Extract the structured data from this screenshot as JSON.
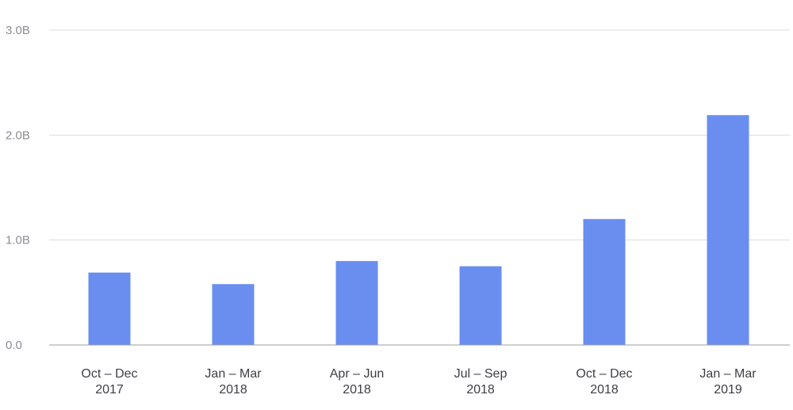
{
  "colors": {
    "bar": "#6a8ef0",
    "grid": "#dcdde0",
    "axis": "#9a9ca0"
  },
  "chart_data": {
    "type": "bar",
    "title": "",
    "xlabel": "",
    "ylabel": "",
    "grid": true,
    "ylim": [
      0,
      3
    ],
    "yticks": [
      {
        "value": 0,
        "label": "0.0"
      },
      {
        "value": 1,
        "label": "1.0B"
      },
      {
        "value": 2,
        "label": "2.0B"
      },
      {
        "value": 3,
        "label": "3.0B"
      }
    ],
    "categories": [
      {
        "line1": "Oct – Dec",
        "line2": "2017"
      },
      {
        "line1": "Jan – Mar",
        "line2": "2018"
      },
      {
        "line1": "Apr – Jun",
        "line2": "2018"
      },
      {
        "line1": "Jul – Sep",
        "line2": "2018"
      },
      {
        "line1": "Oct – Dec",
        "line2": "2018"
      },
      {
        "line1": "Jan – Mar",
        "line2": "2019"
      }
    ],
    "values": [
      0.69,
      0.58,
      0.8,
      0.75,
      1.2,
      2.19
    ]
  }
}
